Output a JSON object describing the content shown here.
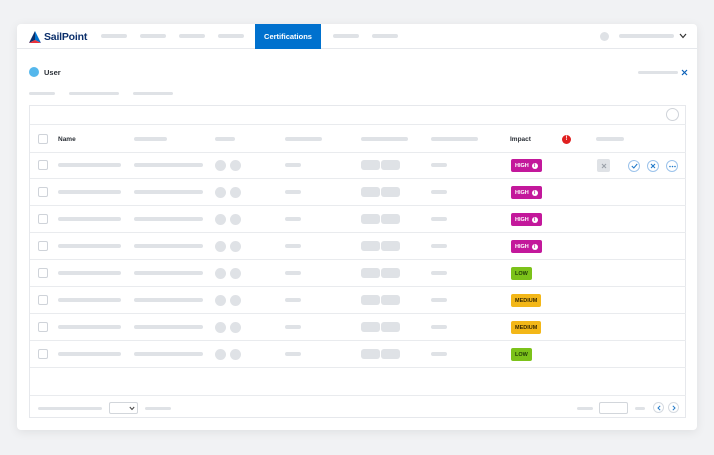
{
  "brand": {
    "name": "SailPoint"
  },
  "nav": {
    "active_tab": "Certifications"
  },
  "page": {
    "section_label": "User"
  },
  "table": {
    "columns": {
      "name": "Name",
      "impact": "Impact",
      "impact_alert": "!"
    },
    "rows": [
      {
        "impact": "HIGH",
        "level": "high"
      },
      {
        "impact": "HIGH",
        "level": "high"
      },
      {
        "impact": "HIGH",
        "level": "high"
      },
      {
        "impact": "HIGH",
        "level": "high"
      },
      {
        "impact": "LOW",
        "level": "low"
      },
      {
        "impact": "MEDIUM",
        "level": "medium"
      },
      {
        "impact": "MEDIUM",
        "level": "medium"
      },
      {
        "impact": "LOW",
        "level": "low"
      }
    ]
  },
  "colors": {
    "brand_blue": "#0071ce",
    "high": "#c3189b",
    "medium": "#f3b718",
    "low": "#7cc21a"
  },
  "icons": [
    "sailpoint-logo-icon",
    "user-icon",
    "close-icon",
    "chevron-down-icon",
    "alert-icon",
    "info-icon",
    "approve-icon",
    "revoke-icon",
    "more-icon",
    "chevron-left-icon",
    "chevron-right-icon"
  ]
}
